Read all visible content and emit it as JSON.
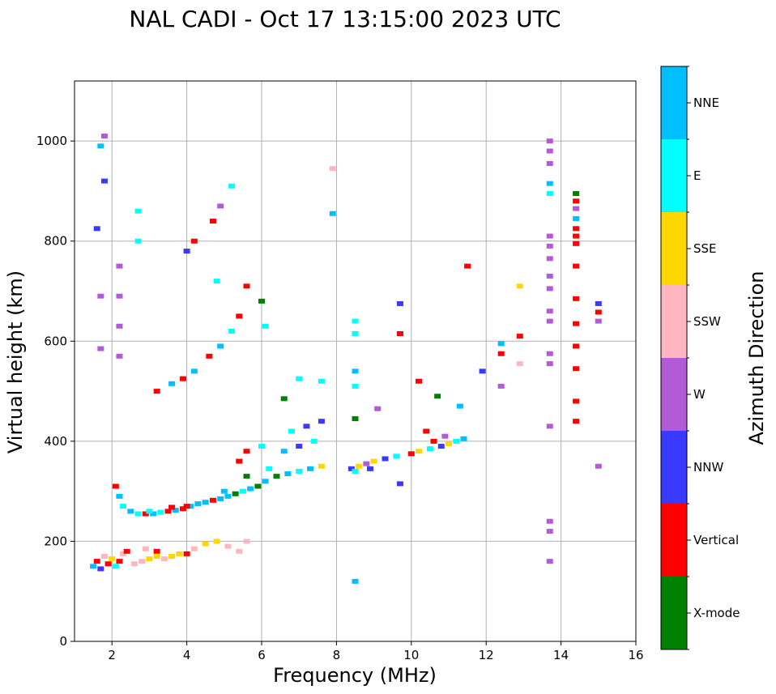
{
  "chart_data": {
    "type": "scatter",
    "title": "NAL CADI - Oct 17 13:15:00 2023 UTC",
    "xlabel": "Frequency (MHz)",
    "ylabel": "Virtual height (km)",
    "xlim": [
      1,
      16
    ],
    "ylim": [
      0,
      1120
    ],
    "xticks": [
      2,
      4,
      6,
      8,
      10,
      12,
      14,
      16
    ],
    "yticks": [
      0,
      200,
      400,
      600,
      800,
      1000
    ],
    "grid": true,
    "colorbar": {
      "label": "Azimuth Direction",
      "categories": [
        "X-mode",
        "Vertical",
        "NNW",
        "W",
        "SSW",
        "SSE",
        "E",
        "NNE"
      ],
      "colors": {
        "X-mode": "#008000",
        "Vertical": "#ff0000",
        "NNW": "#3a3aff",
        "W": "#b35ad6",
        "SSW": "#ffb6c1",
        "SSE": "#ffd700",
        "E": "#00ffff",
        "NNE": "#00bfff"
      }
    },
    "echoes": [
      {
        "f": 1.5,
        "h": 150,
        "dir": "NNE"
      },
      {
        "f": 1.6,
        "h": 160,
        "dir": "Vertical"
      },
      {
        "f": 1.7,
        "h": 145,
        "dir": "NNW"
      },
      {
        "f": 1.8,
        "h": 170,
        "dir": "SSW"
      },
      {
        "f": 1.9,
        "h": 155,
        "dir": "Vertical"
      },
      {
        "f": 2.0,
        "h": 165,
        "dir": "SSE"
      },
      {
        "f": 2.1,
        "h": 150,
        "dir": "E"
      },
      {
        "f": 2.2,
        "h": 160,
        "dir": "Vertical"
      },
      {
        "f": 2.3,
        "h": 175,
        "dir": "SSW"
      },
      {
        "f": 2.4,
        "h": 180,
        "dir": "Vertical"
      },
      {
        "f": 2.6,
        "h": 155,
        "dir": "SSW"
      },
      {
        "f": 2.8,
        "h": 160,
        "dir": "SSW"
      },
      {
        "f": 3.0,
        "h": 165,
        "dir": "SSE"
      },
      {
        "f": 3.2,
        "h": 170,
        "dir": "SSE"
      },
      {
        "f": 3.4,
        "h": 165,
        "dir": "SSW"
      },
      {
        "f": 3.6,
        "h": 170,
        "dir": "SSE"
      },
      {
        "f": 3.8,
        "h": 175,
        "dir": "SSE"
      },
      {
        "f": 4.0,
        "h": 175,
        "dir": "Vertical"
      },
      {
        "f": 4.2,
        "h": 185,
        "dir": "SSW"
      },
      {
        "f": 4.5,
        "h": 195,
        "dir": "SSE"
      },
      {
        "f": 4.8,
        "h": 200,
        "dir": "SSE"
      },
      {
        "f": 5.1,
        "h": 190,
        "dir": "SSW"
      },
      {
        "f": 5.4,
        "h": 180,
        "dir": "SSW"
      },
      {
        "f": 5.6,
        "h": 200,
        "dir": "SSW"
      },
      {
        "f": 3.2,
        "h": 180,
        "dir": "Vertical"
      },
      {
        "f": 2.9,
        "h": 185,
        "dir": "SSW"
      },
      {
        "f": 2.1,
        "h": 310,
        "dir": "Vertical"
      },
      {
        "f": 2.2,
        "h": 290,
        "dir": "NNE"
      },
      {
        "f": 2.3,
        "h": 270,
        "dir": "E"
      },
      {
        "f": 2.5,
        "h": 260,
        "dir": "NNE"
      },
      {
        "f": 2.7,
        "h": 255,
        "dir": "E"
      },
      {
        "f": 2.9,
        "h": 255,
        "dir": "Vertical"
      },
      {
        "f": 3.1,
        "h": 255,
        "dir": "NNE"
      },
      {
        "f": 3.3,
        "h": 258,
        "dir": "E"
      },
      {
        "f": 3.5,
        "h": 260,
        "dir": "Vertical"
      },
      {
        "f": 3.7,
        "h": 262,
        "dir": "NNE"
      },
      {
        "f": 3.9,
        "h": 265,
        "dir": "Vertical"
      },
      {
        "f": 4.1,
        "h": 270,
        "dir": "NNE"
      },
      {
        "f": 4.3,
        "h": 275,
        "dir": "NNE"
      },
      {
        "f": 4.5,
        "h": 278,
        "dir": "NNE"
      },
      {
        "f": 4.7,
        "h": 282,
        "dir": "Vertical"
      },
      {
        "f": 4.9,
        "h": 285,
        "dir": "NNE"
      },
      {
        "f": 5.1,
        "h": 290,
        "dir": "NNE"
      },
      {
        "f": 5.3,
        "h": 295,
        "dir": "X-mode"
      },
      {
        "f": 5.5,
        "h": 300,
        "dir": "E"
      },
      {
        "f": 5.7,
        "h": 305,
        "dir": "NNE"
      },
      {
        "f": 5.9,
        "h": 310,
        "dir": "X-mode"
      },
      {
        "f": 6.1,
        "h": 320,
        "dir": "NNE"
      },
      {
        "f": 6.4,
        "h": 330,
        "dir": "X-mode"
      },
      {
        "f": 6.7,
        "h": 335,
        "dir": "NNE"
      },
      {
        "f": 7.0,
        "h": 340,
        "dir": "E"
      },
      {
        "f": 7.3,
        "h": 345,
        "dir": "NNE"
      },
      {
        "f": 7.6,
        "h": 350,
        "dir": "SSE"
      },
      {
        "f": 3.0,
        "h": 260,
        "dir": "E"
      },
      {
        "f": 3.6,
        "h": 268,
        "dir": "Vertical"
      },
      {
        "f": 4.0,
        "h": 270,
        "dir": "Vertical"
      },
      {
        "f": 5.0,
        "h": 300,
        "dir": "NNE"
      },
      {
        "f": 5.6,
        "h": 330,
        "dir": "X-mode"
      },
      {
        "f": 6.2,
        "h": 345,
        "dir": "E"
      },
      {
        "f": 5.4,
        "h": 360,
        "dir": "Vertical"
      },
      {
        "f": 5.6,
        "h": 380,
        "dir": "Vertical"
      },
      {
        "f": 6.0,
        "h": 390,
        "dir": "E"
      },
      {
        "f": 6.6,
        "h": 380,
        "dir": "NNE"
      },
      {
        "f": 7.0,
        "h": 390,
        "dir": "NNW"
      },
      {
        "f": 7.4,
        "h": 400,
        "dir": "E"
      },
      {
        "f": 6.8,
        "h": 420,
        "dir": "E"
      },
      {
        "f": 7.2,
        "h": 430,
        "dir": "NNW"
      },
      {
        "f": 7.6,
        "h": 440,
        "dir": "NNW"
      },
      {
        "f": 8.4,
        "h": 345,
        "dir": "NNW"
      },
      {
        "f": 8.6,
        "h": 350,
        "dir": "SSE"
      },
      {
        "f": 8.8,
        "h": 355,
        "dir": "W"
      },
      {
        "f": 9.0,
        "h": 360,
        "dir": "SSE"
      },
      {
        "f": 8.5,
        "h": 340,
        "dir": "E"
      },
      {
        "f": 8.9,
        "h": 345,
        "dir": "NNW"
      },
      {
        "f": 9.3,
        "h": 365,
        "dir": "NNW"
      },
      {
        "f": 9.6,
        "h": 370,
        "dir": "E"
      },
      {
        "f": 10.0,
        "h": 375,
        "dir": "Vertical"
      },
      {
        "f": 10.2,
        "h": 380,
        "dir": "SSE"
      },
      {
        "f": 10.5,
        "h": 385,
        "dir": "E"
      },
      {
        "f": 10.8,
        "h": 390,
        "dir": "NNW"
      },
      {
        "f": 11.0,
        "h": 395,
        "dir": "SSE"
      },
      {
        "f": 11.2,
        "h": 400,
        "dir": "E"
      },
      {
        "f": 11.4,
        "h": 405,
        "dir": "NNE"
      },
      {
        "f": 10.6,
        "h": 400,
        "dir": "Vertical"
      },
      {
        "f": 10.9,
        "h": 410,
        "dir": "W"
      },
      {
        "f": 10.4,
        "h": 420,
        "dir": "Vertical"
      },
      {
        "f": 3.2,
        "h": 500,
        "dir": "Vertical"
      },
      {
        "f": 3.6,
        "h": 515,
        "dir": "NNE"
      },
      {
        "f": 3.9,
        "h": 525,
        "dir": "Vertical"
      },
      {
        "f": 4.2,
        "h": 540,
        "dir": "NNE"
      },
      {
        "f": 4.6,
        "h": 570,
        "dir": "Vertical"
      },
      {
        "f": 4.9,
        "h": 590,
        "dir": "NNE"
      },
      {
        "f": 5.2,
        "h": 620,
        "dir": "E"
      },
      {
        "f": 5.4,
        "h": 650,
        "dir": "Vertical"
      },
      {
        "f": 5.6,
        "h": 710,
        "dir": "Vertical"
      },
      {
        "f": 4.0,
        "h": 780,
        "dir": "NNW"
      },
      {
        "f": 4.2,
        "h": 800,
        "dir": "Vertical"
      },
      {
        "f": 4.7,
        "h": 840,
        "dir": "Vertical"
      },
      {
        "f": 4.9,
        "h": 870,
        "dir": "W"
      },
      {
        "f": 5.2,
        "h": 910,
        "dir": "E"
      },
      {
        "f": 4.8,
        "h": 720,
        "dir": "E"
      },
      {
        "f": 1.8,
        "h": 1010,
        "dir": "W"
      },
      {
        "f": 1.8,
        "h": 920,
        "dir": "NNW"
      },
      {
        "f": 1.7,
        "h": 990,
        "dir": "NNE"
      },
      {
        "f": 1.6,
        "h": 825,
        "dir": "NNW"
      },
      {
        "f": 1.7,
        "h": 690,
        "dir": "W"
      },
      {
        "f": 1.7,
        "h": 585,
        "dir": "W"
      },
      {
        "f": 2.2,
        "h": 750,
        "dir": "W"
      },
      {
        "f": 2.2,
        "h": 690,
        "dir": "W"
      },
      {
        "f": 2.2,
        "h": 630,
        "dir": "W"
      },
      {
        "f": 2.2,
        "h": 570,
        "dir": "W"
      },
      {
        "f": 2.7,
        "h": 860,
        "dir": "E"
      },
      {
        "f": 2.7,
        "h": 800,
        "dir": "E"
      },
      {
        "f": 6.0,
        "h": 680,
        "dir": "X-mode"
      },
      {
        "f": 6.1,
        "h": 630,
        "dir": "E"
      },
      {
        "f": 6.6,
        "h": 485,
        "dir": "X-mode"
      },
      {
        "f": 7.0,
        "h": 525,
        "dir": "E"
      },
      {
        "f": 7.6,
        "h": 520,
        "dir": "E"
      },
      {
        "f": 7.9,
        "h": 945,
        "dir": "SSW"
      },
      {
        "f": 7.9,
        "h": 855,
        "dir": "NNE"
      },
      {
        "f": 8.5,
        "h": 640,
        "dir": "E"
      },
      {
        "f": 8.5,
        "h": 615,
        "dir": "E"
      },
      {
        "f": 8.5,
        "h": 540,
        "dir": "NNE"
      },
      {
        "f": 8.5,
        "h": 510,
        "dir": "E"
      },
      {
        "f": 8.5,
        "h": 445,
        "dir": "X-mode"
      },
      {
        "f": 8.5,
        "h": 120,
        "dir": "NNE"
      },
      {
        "f": 9.1,
        "h": 465,
        "dir": "W"
      },
      {
        "f": 9.7,
        "h": 675,
        "dir": "NNW"
      },
      {
        "f": 9.7,
        "h": 615,
        "dir": "Vertical"
      },
      {
        "f": 9.7,
        "h": 315,
        "dir": "NNW"
      },
      {
        "f": 10.2,
        "h": 520,
        "dir": "Vertical"
      },
      {
        "f": 10.7,
        "h": 490,
        "dir": "X-mode"
      },
      {
        "f": 11.3,
        "h": 470,
        "dir": "NNE"
      },
      {
        "f": 11.5,
        "h": 750,
        "dir": "Vertical"
      },
      {
        "f": 11.9,
        "h": 540,
        "dir": "NNW"
      },
      {
        "f": 12.4,
        "h": 595,
        "dir": "NNE"
      },
      {
        "f": 12.4,
        "h": 575,
        "dir": "Vertical"
      },
      {
        "f": 12.4,
        "h": 510,
        "dir": "W"
      },
      {
        "f": 12.9,
        "h": 710,
        "dir": "SSE"
      },
      {
        "f": 12.9,
        "h": 610,
        "dir": "Vertical"
      },
      {
        "f": 12.9,
        "h": 555,
        "dir": "SSW"
      },
      {
        "f": 13.7,
        "h": 1000,
        "dir": "W"
      },
      {
        "f": 13.7,
        "h": 980,
        "dir": "W"
      },
      {
        "f": 13.7,
        "h": 955,
        "dir": "W"
      },
      {
        "f": 13.7,
        "h": 915,
        "dir": "NNE"
      },
      {
        "f": 13.7,
        "h": 895,
        "dir": "E"
      },
      {
        "f": 13.7,
        "h": 810,
        "dir": "W"
      },
      {
        "f": 13.7,
        "h": 790,
        "dir": "W"
      },
      {
        "f": 13.7,
        "h": 765,
        "dir": "W"
      },
      {
        "f": 13.7,
        "h": 730,
        "dir": "W"
      },
      {
        "f": 13.7,
        "h": 705,
        "dir": "W"
      },
      {
        "f": 13.7,
        "h": 660,
        "dir": "W"
      },
      {
        "f": 13.7,
        "h": 640,
        "dir": "W"
      },
      {
        "f": 13.7,
        "h": 575,
        "dir": "W"
      },
      {
        "f": 13.7,
        "h": 555,
        "dir": "W"
      },
      {
        "f": 13.7,
        "h": 430,
        "dir": "W"
      },
      {
        "f": 13.7,
        "h": 240,
        "dir": "W"
      },
      {
        "f": 13.7,
        "h": 220,
        "dir": "W"
      },
      {
        "f": 13.7,
        "h": 160,
        "dir": "W"
      },
      {
        "f": 14.4,
        "h": 895,
        "dir": "X-mode"
      },
      {
        "f": 14.4,
        "h": 880,
        "dir": "Vertical"
      },
      {
        "f": 14.4,
        "h": 865,
        "dir": "W"
      },
      {
        "f": 14.4,
        "h": 845,
        "dir": "NNE"
      },
      {
        "f": 14.4,
        "h": 825,
        "dir": "Vertical"
      },
      {
        "f": 14.4,
        "h": 810,
        "dir": "Vertical"
      },
      {
        "f": 14.4,
        "h": 795,
        "dir": "Vertical"
      },
      {
        "f": 14.4,
        "h": 750,
        "dir": "Vertical"
      },
      {
        "f": 14.4,
        "h": 685,
        "dir": "Vertical"
      },
      {
        "f": 14.4,
        "h": 635,
        "dir": "Vertical"
      },
      {
        "f": 14.4,
        "h": 590,
        "dir": "Vertical"
      },
      {
        "f": 14.4,
        "h": 545,
        "dir": "Vertical"
      },
      {
        "f": 14.4,
        "h": 480,
        "dir": "Vertical"
      },
      {
        "f": 14.4,
        "h": 440,
        "dir": "Vertical"
      },
      {
        "f": 15.0,
        "h": 675,
        "dir": "NNW"
      },
      {
        "f": 15.0,
        "h": 658,
        "dir": "Vertical"
      },
      {
        "f": 15.0,
        "h": 640,
        "dir": "W"
      },
      {
        "f": 15.0,
        "h": 350,
        "dir": "W"
      }
    ]
  }
}
